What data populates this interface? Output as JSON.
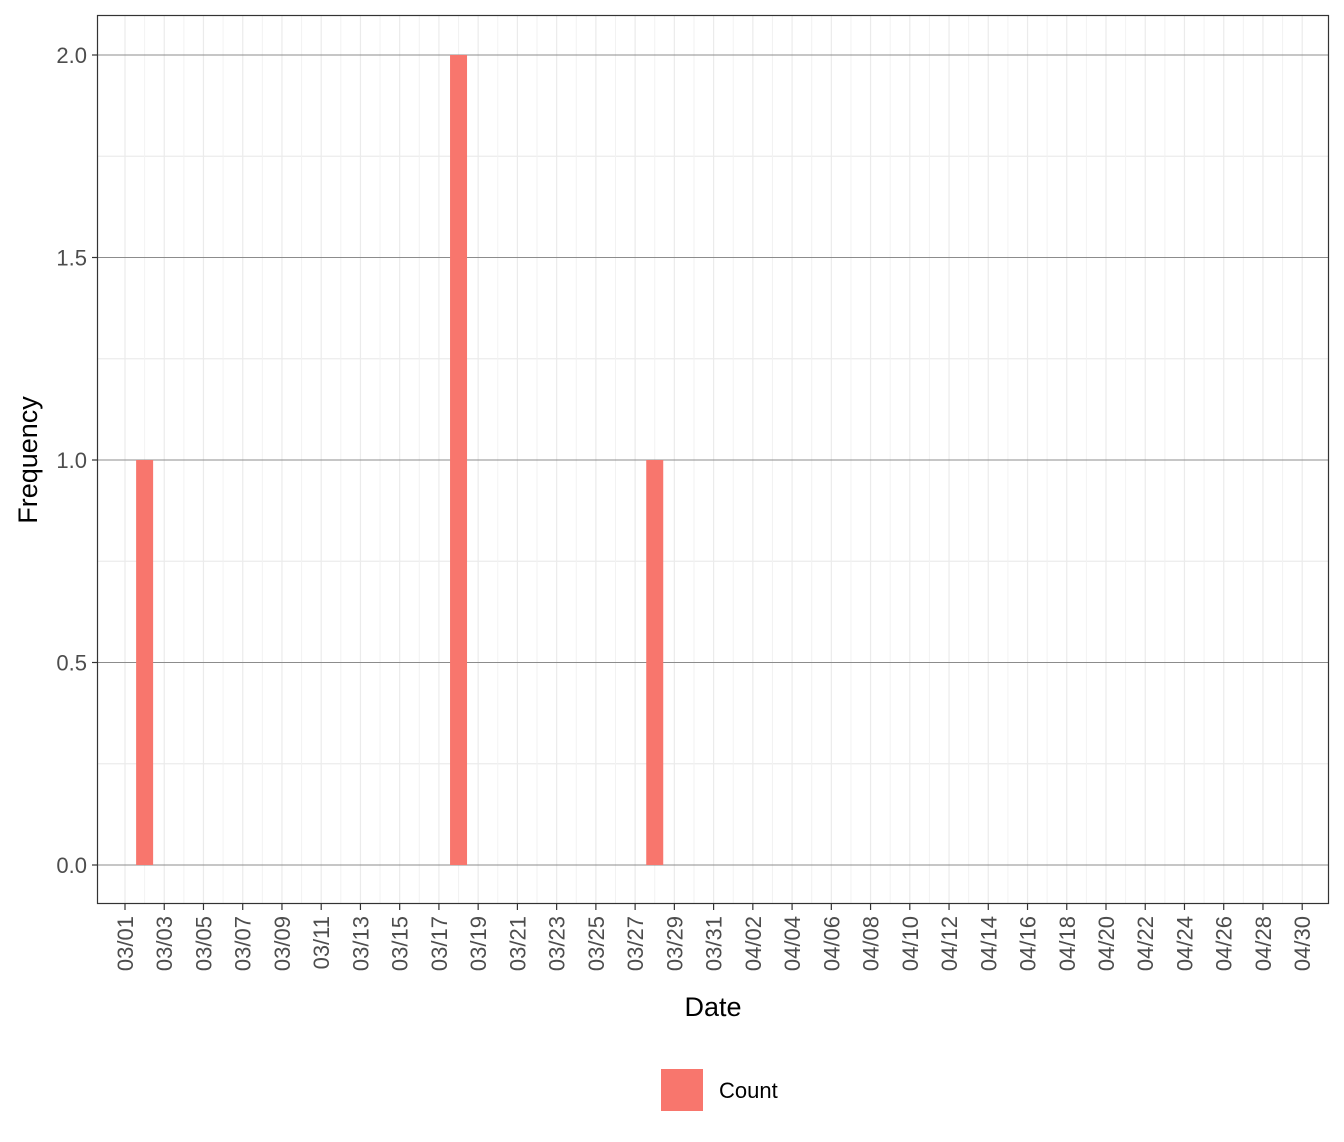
{
  "chart_data": {
    "type": "bar",
    "title": "",
    "xlabel": "Date",
    "ylabel": "Frequency",
    "x_tick_labels": [
      "03/01",
      "03/03",
      "03/05",
      "03/07",
      "03/09",
      "03/11",
      "03/13",
      "03/15",
      "03/17",
      "03/19",
      "03/21",
      "03/23",
      "03/25",
      "03/27",
      "03/29",
      "03/31",
      "04/02",
      "04/04",
      "04/06",
      "04/08",
      "04/10",
      "04/12",
      "04/14",
      "04/16",
      "04/18",
      "04/20",
      "04/22",
      "04/24",
      "04/26",
      "04/28",
      "04/30"
    ],
    "y_ticks": [
      0.0,
      0.5,
      1.0,
      1.5,
      2.0
    ],
    "y_tick_labels": [
      "0.0",
      "0.5",
      "1.0",
      "1.5",
      "2.0"
    ],
    "ylim": [
      -0.1,
      2.1
    ],
    "xlim": [
      "02/29",
      "05/01"
    ],
    "series": [
      {
        "name": "Count",
        "color": "#F8766D",
        "points": [
          {
            "date": "03/02",
            "value": 1
          },
          {
            "date": "03/18",
            "value": 2
          },
          {
            "date": "03/28",
            "value": 1
          }
        ]
      }
    ],
    "grid": true,
    "legend_position": "bottom",
    "theme": "black-and-white"
  }
}
